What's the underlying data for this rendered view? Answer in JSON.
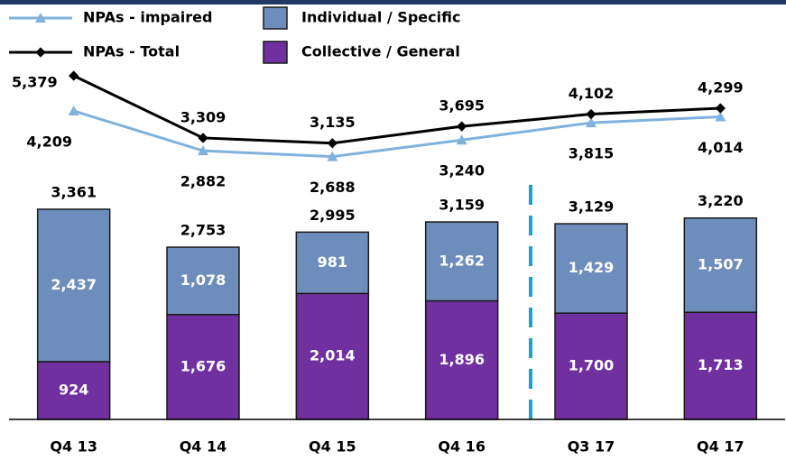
{
  "chart_data": {
    "type": "bar",
    "stacked": true,
    "categories": [
      "Q4 13",
      "Q4 14",
      "Q4 15",
      "Q4 16",
      "Q3 17",
      "Q4 17"
    ],
    "series": [
      {
        "name": "Collective / General",
        "type": "bar",
        "color": "#7030a0",
        "values": [
          924,
          1676,
          2014,
          1896,
          1700,
          1713
        ],
        "value_labels": [
          "924",
          "1,676",
          "2,014",
          "1,896",
          "1,700",
          "1,713"
        ]
      },
      {
        "name": "Individual / Specific",
        "type": "bar",
        "color": "#6d8ebd",
        "values": [
          2437,
          1078,
          981,
          1262,
          1429,
          1507
        ],
        "value_labels": [
          "2,437",
          "1,078",
          "981",
          "1,262",
          "1,429",
          "1,507"
        ]
      },
      {
        "name": "NPAs - impaired",
        "type": "line",
        "axis": "y2",
        "color": "#7fb2dc",
        "values": [
          4209,
          2882,
          2688,
          3240,
          3815,
          4014
        ],
        "value_labels": [
          "4,209",
          "2,882",
          "2,688",
          "3,240",
          "3,815",
          "4,014"
        ]
      },
      {
        "name": "NPAs - Total",
        "type": "line",
        "axis": "y2",
        "color": "#000000",
        "values": [
          5379,
          3309,
          3135,
          3695,
          4102,
          4299
        ],
        "value_labels": [
          "5,379",
          "3,309",
          "3,135",
          "3,695",
          "4,102",
          "4,299"
        ]
      }
    ],
    "total_labels": [
      "3,361",
      "2,753",
      "2,995",
      "3,159",
      "3,129",
      "3,220"
    ],
    "ylim": [
      0,
      6000
    ],
    "y2lim": [
      -6060,
      6430
    ]
  }
}
